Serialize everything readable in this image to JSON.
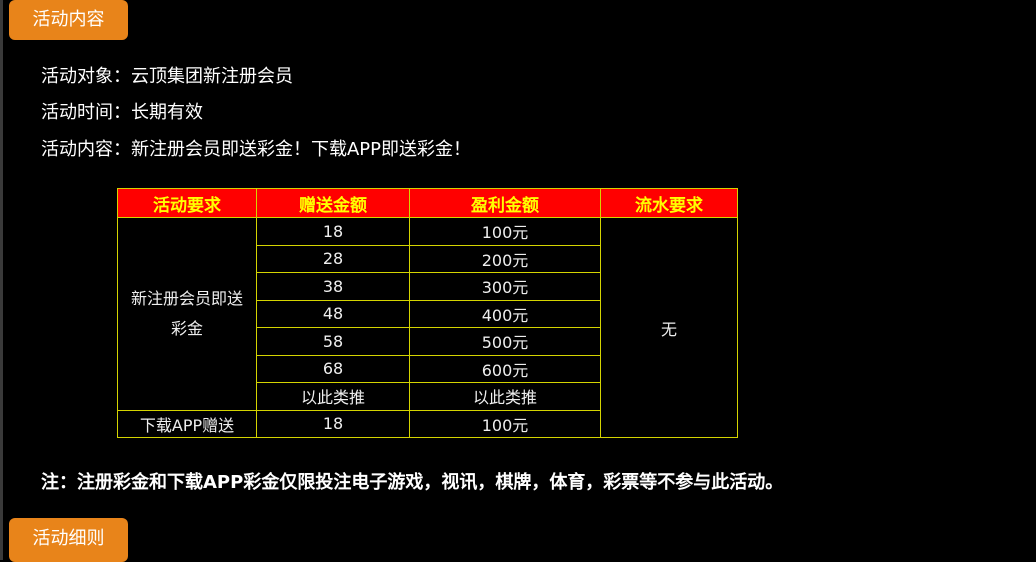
{
  "colors": {
    "tab": "#e8841a",
    "header_bg": "#ff0000",
    "header_text": "#ffff00",
    "border": "#d4d400"
  },
  "tabs": {
    "top": "活动内容",
    "bottom": "活动细则"
  },
  "info": [
    "活动对象：云顶集团新注册会员",
    "活动时间：长期有效",
    "活动内容：新注册会员即送彩金！下载APP即送彩金！"
  ],
  "table": {
    "headers": [
      "活动要求",
      "赠送金额",
      "盈利金额",
      "流水要求"
    ],
    "groups": [
      {
        "requirement": "新注册会员即送彩金",
        "rows": [
          [
            "18",
            "100元"
          ],
          [
            "28",
            "200元"
          ],
          [
            "38",
            "300元"
          ],
          [
            "48",
            "400元"
          ],
          [
            "58",
            "500元"
          ],
          [
            "68",
            "600元"
          ],
          [
            "以此类推",
            "以此类推"
          ]
        ]
      },
      {
        "requirement": "下载APP赠送",
        "rows": [
          [
            "18",
            "100元"
          ]
        ]
      }
    ],
    "turnover": "无"
  },
  "note": "注：注册彩金和下载APP彩金仅限投注电子游戏，视讯，棋牌，体育，彩票等不参与此活动。"
}
